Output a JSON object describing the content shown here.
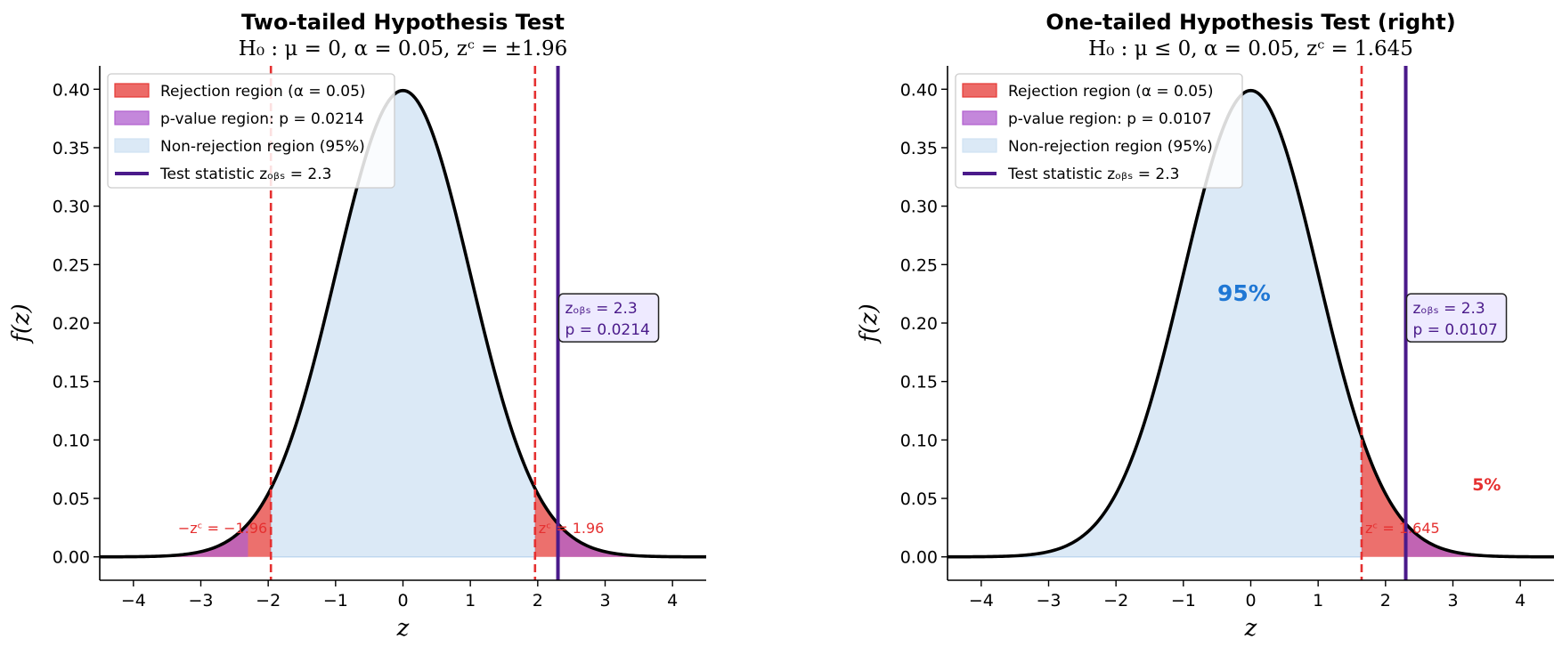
{
  "colors": {
    "rejection": "#e53935",
    "pvalue": "#b05fcf",
    "nonrejection": "#cfe2f3",
    "curve": "#000000",
    "critical_line": "#e53030",
    "observed_line": "#4a1a8a",
    "pct_blue": "#1f77d4"
  },
  "chart_data": [
    {
      "type": "area",
      "title": "Two-tailed Hypothesis Test",
      "subtitle": "H₀ : μ = 0, α = 0.05, zᶜ = ±1.96",
      "xlabel": "z",
      "ylabel": "f(z)",
      "xlim": [
        -4.5,
        4.5
      ],
      "ylim": [
        -0.02,
        0.42
      ],
      "xticks": [
        -4,
        -3,
        -2,
        -1,
        0,
        1,
        2,
        3,
        4
      ],
      "xtick_labels": [
        "−4",
        "−3",
        "−2",
        "−1",
        "0",
        "1",
        "2",
        "3",
        "4"
      ],
      "yticks": [
        0.0,
        0.05,
        0.1,
        0.15,
        0.2,
        0.25,
        0.3,
        0.35,
        0.4
      ],
      "ytick_labels": [
        "0.00",
        "0.05",
        "0.10",
        "0.15",
        "0.20",
        "0.25",
        "0.30",
        "0.35",
        "0.40"
      ],
      "distribution": "standard normal",
      "critical_values": [
        -1.96,
        1.96
      ],
      "critical_labels": [
        "−zᶜ = −1.96",
        "zᶜ = 1.96"
      ],
      "test_statistic": 2.3,
      "p_value": 0.0214,
      "pvalue_regions": [
        [
          -4.5,
          -2.3
        ],
        [
          2.3,
          4.5
        ]
      ],
      "rejection_regions": [
        [
          -4.5,
          -1.96
        ],
        [
          1.96,
          4.5
        ]
      ],
      "nonrejection_region": [
        -1.96,
        1.96
      ],
      "obs_box_lines": [
        "zₒᵦₛ = 2.3",
        "p = 0.0214"
      ],
      "legend_position": "upper-left",
      "legend": [
        {
          "kind": "patch",
          "color": "rejection",
          "label": "Rejection region (α = 0.05)"
        },
        {
          "kind": "patch",
          "color": "pvalue",
          "label": "p-value region: p = 0.0214"
        },
        {
          "kind": "patch",
          "color": "nonrejection",
          "label": "Non-rejection region (95%)"
        },
        {
          "kind": "line",
          "color": "observed_line",
          "label": "Test statistic zₒᵦₛ = 2.3"
        }
      ],
      "annotations": []
    },
    {
      "type": "area",
      "title": "One-tailed Hypothesis Test (right)",
      "subtitle": "H₀ : μ ≤ 0, α = 0.05, zᶜ = 1.645",
      "xlabel": "z",
      "ylabel": "f(z)",
      "xlim": [
        -4.5,
        4.5
      ],
      "ylim": [
        -0.02,
        0.42
      ],
      "xticks": [
        -4,
        -3,
        -2,
        -1,
        0,
        1,
        2,
        3,
        4
      ],
      "xtick_labels": [
        "−4",
        "−3",
        "−2",
        "−1",
        "0",
        "1",
        "2",
        "3",
        "4"
      ],
      "yticks": [
        0.0,
        0.05,
        0.1,
        0.15,
        0.2,
        0.25,
        0.3,
        0.35,
        0.4
      ],
      "ytick_labels": [
        "0.00",
        "0.05",
        "0.10",
        "0.15",
        "0.20",
        "0.25",
        "0.30",
        "0.35",
        "0.40"
      ],
      "distribution": "standard normal",
      "critical_values": [
        1.645
      ],
      "critical_labels": [
        "zᶜ = 1.645"
      ],
      "test_statistic": 2.3,
      "p_value": 0.0107,
      "pvalue_regions": [
        [
          2.3,
          4.5
        ]
      ],
      "rejection_regions": [
        [
          1.645,
          4.5
        ]
      ],
      "nonrejection_region": [
        -4.5,
        1.645
      ],
      "obs_box_lines": [
        "zₒᵦₛ = 2.3",
        "p = 0.0107"
      ],
      "legend_position": "upper-left",
      "legend": [
        {
          "kind": "patch",
          "color": "rejection",
          "label": "Rejection region (α = 0.05)"
        },
        {
          "kind": "patch",
          "color": "pvalue",
          "label": "p-value region: p = 0.0107"
        },
        {
          "kind": "patch",
          "color": "nonrejection",
          "label": "Non-rejection region (95%)"
        },
        {
          "kind": "line",
          "color": "observed_line",
          "label": "Test statistic zₒᵦₛ = 2.3"
        }
      ],
      "annotations": [
        {
          "text": "95%",
          "x": -0.1,
          "y": 0.225,
          "style": "big"
        },
        {
          "text": "5%",
          "x": 3.5,
          "y": 0.063,
          "style": "small"
        }
      ]
    }
  ]
}
